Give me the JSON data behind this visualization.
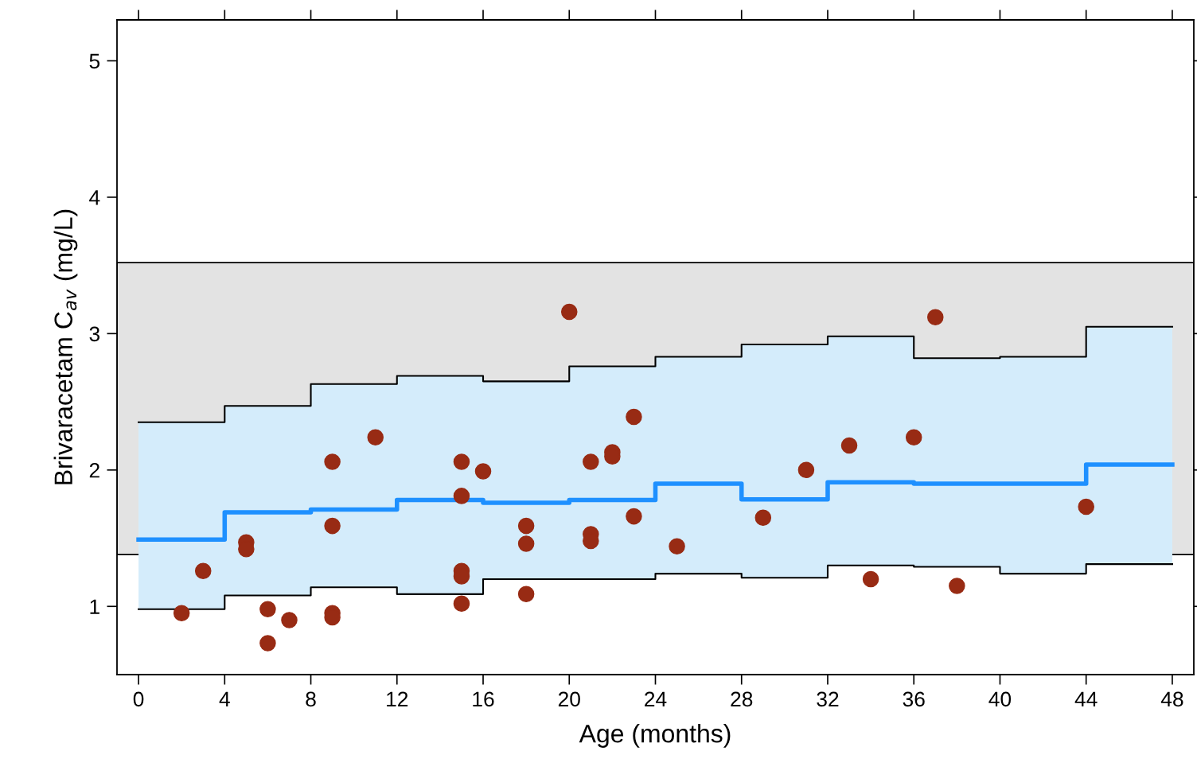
{
  "chart_data": {
    "type": "scatter",
    "xlabel": "Age (months)",
    "ylabel": "Brivaracetam C$_{av}$ (mg/L)",
    "xlim": [
      -1,
      49
    ],
    "ylim": [
      0.5,
      5.3
    ],
    "xticks": [
      0,
      4,
      8,
      12,
      16,
      20,
      24,
      28,
      32,
      36,
      40,
      44,
      48
    ],
    "yticks": [
      1,
      2,
      3,
      4,
      5
    ],
    "grid": false,
    "legend": false,
    "bands": [
      {
        "axis": "y",
        "from": 1.38,
        "to": 3.52,
        "color": "#e3e3e3"
      }
    ],
    "series": [
      {
        "type": "step",
        "color": "#1e90ff",
        "marker": "none",
        "x": [
          0,
          4,
          8,
          12,
          16,
          20,
          24,
          28,
          32,
          36,
          40,
          44,
          48
        ],
        "values": [
          1.49,
          1.69,
          1.71,
          1.78,
          1.76,
          1.78,
          1.9,
          1.785,
          1.91,
          1.9,
          1.9,
          2.04,
          2.04
        ],
        "lower": [
          0.98,
          1.08,
          1.14,
          1.09,
          1.2,
          1.2,
          1.24,
          1.21,
          1.3,
          1.29,
          1.24,
          1.31,
          1.31
        ],
        "upper": [
          2.35,
          2.47,
          2.63,
          2.69,
          2.65,
          2.76,
          2.83,
          2.92,
          2.98,
          2.82,
          2.83,
          3.05,
          3.05
        ]
      },
      {
        "type": "step",
        "color": "#000000",
        "marker": "none",
        "x": [
          0,
          4,
          8,
          12,
          16,
          20,
          24,
          28,
          32,
          36,
          40,
          44,
          48
        ],
        "values": [
          0.98,
          1.08,
          1.14,
          1.09,
          1.2,
          1.2,
          1.24,
          1.21,
          1.3,
          1.29,
          1.24,
          1.31,
          1.31
        ]
      },
      {
        "type": "step",
        "color": "#000000",
        "marker": "none",
        "x": [
          0,
          4,
          8,
          12,
          16,
          20,
          24,
          28,
          32,
          36,
          40,
          44,
          48
        ],
        "values": [
          2.35,
          2.47,
          2.63,
          2.69,
          2.65,
          2.76,
          2.83,
          2.92,
          2.98,
          2.82,
          2.83,
          3.05,
          3.05
        ]
      },
      {
        "color": "#982b14",
        "marker": "circle",
        "x": [
          2,
          3,
          5,
          5,
          6,
          6,
          7,
          9,
          9,
          9,
          9,
          11,
          15,
          15,
          15,
          15,
          15,
          16,
          18,
          18,
          18,
          20,
          21,
          21,
          21,
          22,
          22,
          23,
          23,
          25,
          29,
          31,
          33,
          34,
          36,
          37,
          38,
          44
        ],
        "values": [
          0.95,
          1.26,
          1.47,
          1.42,
          0.98,
          0.73,
          0.9,
          2.06,
          1.59,
          0.95,
          0.92,
          2.24,
          2.06,
          1.81,
          1.26,
          1.22,
          1.02,
          1.99,
          1.59,
          1.46,
          1.09,
          3.16,
          2.06,
          1.53,
          1.48,
          2.13,
          2.1,
          2.39,
          1.66,
          1.44,
          1.65,
          2.0,
          2.18,
          1.2,
          2.24,
          3.12,
          1.15,
          1.73
        ]
      }
    ]
  }
}
